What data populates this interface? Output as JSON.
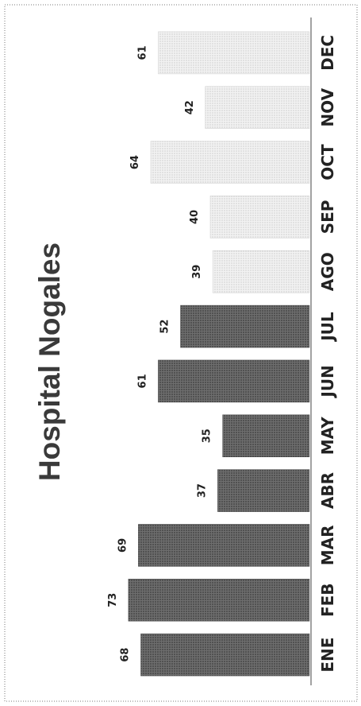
{
  "chart_data": {
    "type": "bar",
    "orientation": "horizontal",
    "title": "Hospital Nogales",
    "categories": [
      "ENE",
      "FEB",
      "MAR",
      "ABR",
      "MAY",
      "JUN",
      "JUL",
      "AGO",
      "SEP",
      "OCT",
      "NOV",
      "DEC"
    ],
    "values": [
      68,
      73,
      69,
      37,
      35,
      61,
      52,
      39,
      40,
      64,
      42,
      61
    ],
    "xlim": [
      0,
      80
    ],
    "grid": false,
    "legend": "none",
    "colors": {
      "dark_bars": "#5a5a5a",
      "light_bars": "#e6e6e6"
    },
    "dark_bar_count": 7
  }
}
